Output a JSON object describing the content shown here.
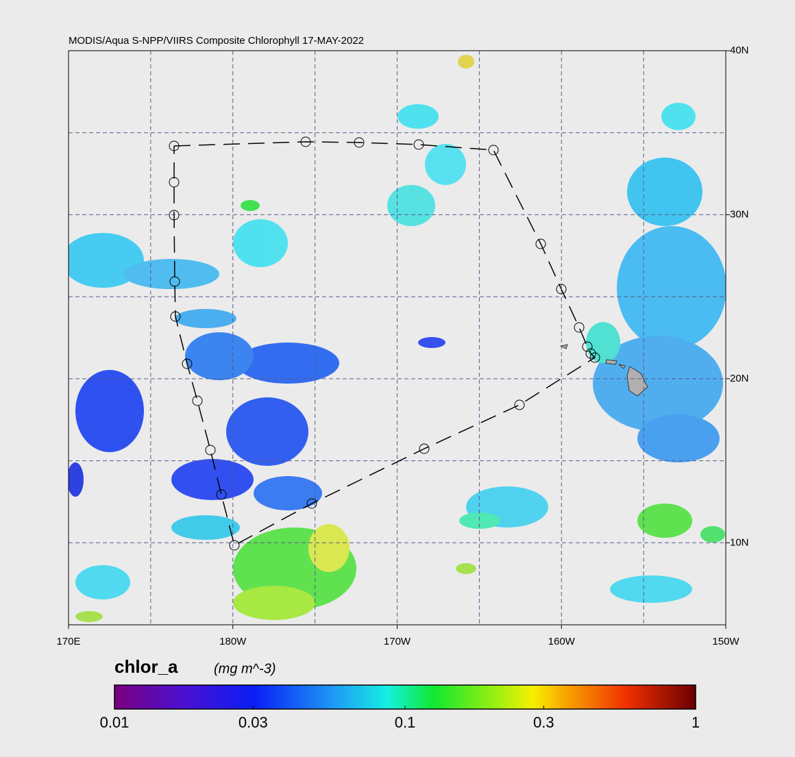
{
  "title": "MODIS/Aqua S-NPP/VIIRS Composite Chlorophyll 17-MAY-2022",
  "map": {
    "xlim": [
      170,
      210
    ],
    "ylim": [
      5,
      40
    ],
    "xticks": [
      {
        "value": 170,
        "label": "170E"
      },
      {
        "value": 180,
        "label": "180W"
      },
      {
        "value": 190,
        "label": "170W"
      },
      {
        "value": 200,
        "label": "160W"
      },
      {
        "value": 210,
        "label": "150W"
      }
    ],
    "yticks": [
      {
        "value": 40,
        "label": "40N"
      },
      {
        "value": 30,
        "label": "30N"
      },
      {
        "value": 20,
        "label": "20N"
      },
      {
        "value": 10,
        "label": "10N"
      }
    ],
    "xgrid": [
      175,
      180,
      185,
      190,
      195,
      200,
      205
    ],
    "ygrid": [
      10,
      15,
      20,
      25,
      30,
      35
    ]
  },
  "colorbar": {
    "label": "chlor_a",
    "units": "(mg m^-3)",
    "log_scale": true,
    "lim": [
      0.01,
      1
    ],
    "ticks": [
      0.01,
      0.03,
      0.1,
      0.3,
      1
    ]
  }
}
